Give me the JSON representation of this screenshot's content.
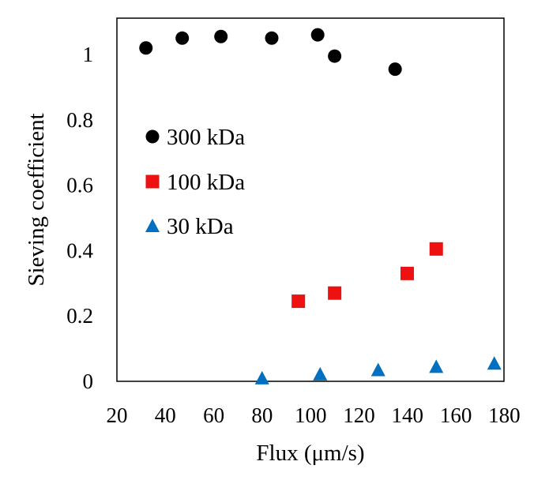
{
  "chart_data": {
    "type": "scatter",
    "title": "",
    "xlabel": "Flux (μm/s)",
    "ylabel": "Sieving coefficient",
    "xlim": [
      20,
      180
    ],
    "ylim": [
      0,
      1.1
    ],
    "xticks": [
      20,
      40,
      60,
      80,
      100,
      120,
      140,
      160,
      180
    ],
    "yticks": [
      0,
      0.2,
      0.4,
      0.6,
      0.8,
      1
    ],
    "xtick_labels": [
      "20",
      "40",
      "60",
      "80",
      "100",
      "120",
      "140",
      "160",
      "180"
    ],
    "ytick_labels": [
      "0",
      "0.2",
      "0.4",
      "0.6",
      "0.8",
      "1"
    ],
    "grid": false,
    "legend_position": "left",
    "series": [
      {
        "name": "300 kDa",
        "marker": "circle",
        "color": "#000000",
        "x": [
          32,
          47,
          63,
          84,
          103,
          110,
          135
        ],
        "y": [
          1.02,
          1.05,
          1.055,
          1.05,
          1.06,
          0.995,
          0.955
        ]
      },
      {
        "name": "100 kDa",
        "marker": "square",
        "color": "#ee1111",
        "x": [
          95,
          110,
          140,
          152
        ],
        "y": [
          0.245,
          0.27,
          0.33,
          0.405
        ]
      },
      {
        "name": "30 kDa",
        "marker": "triangle",
        "color": "#0070c0",
        "x": [
          80,
          104,
          128,
          152,
          176
        ],
        "y": [
          0.01,
          0.022,
          0.035,
          0.045,
          0.055
        ]
      }
    ]
  }
}
